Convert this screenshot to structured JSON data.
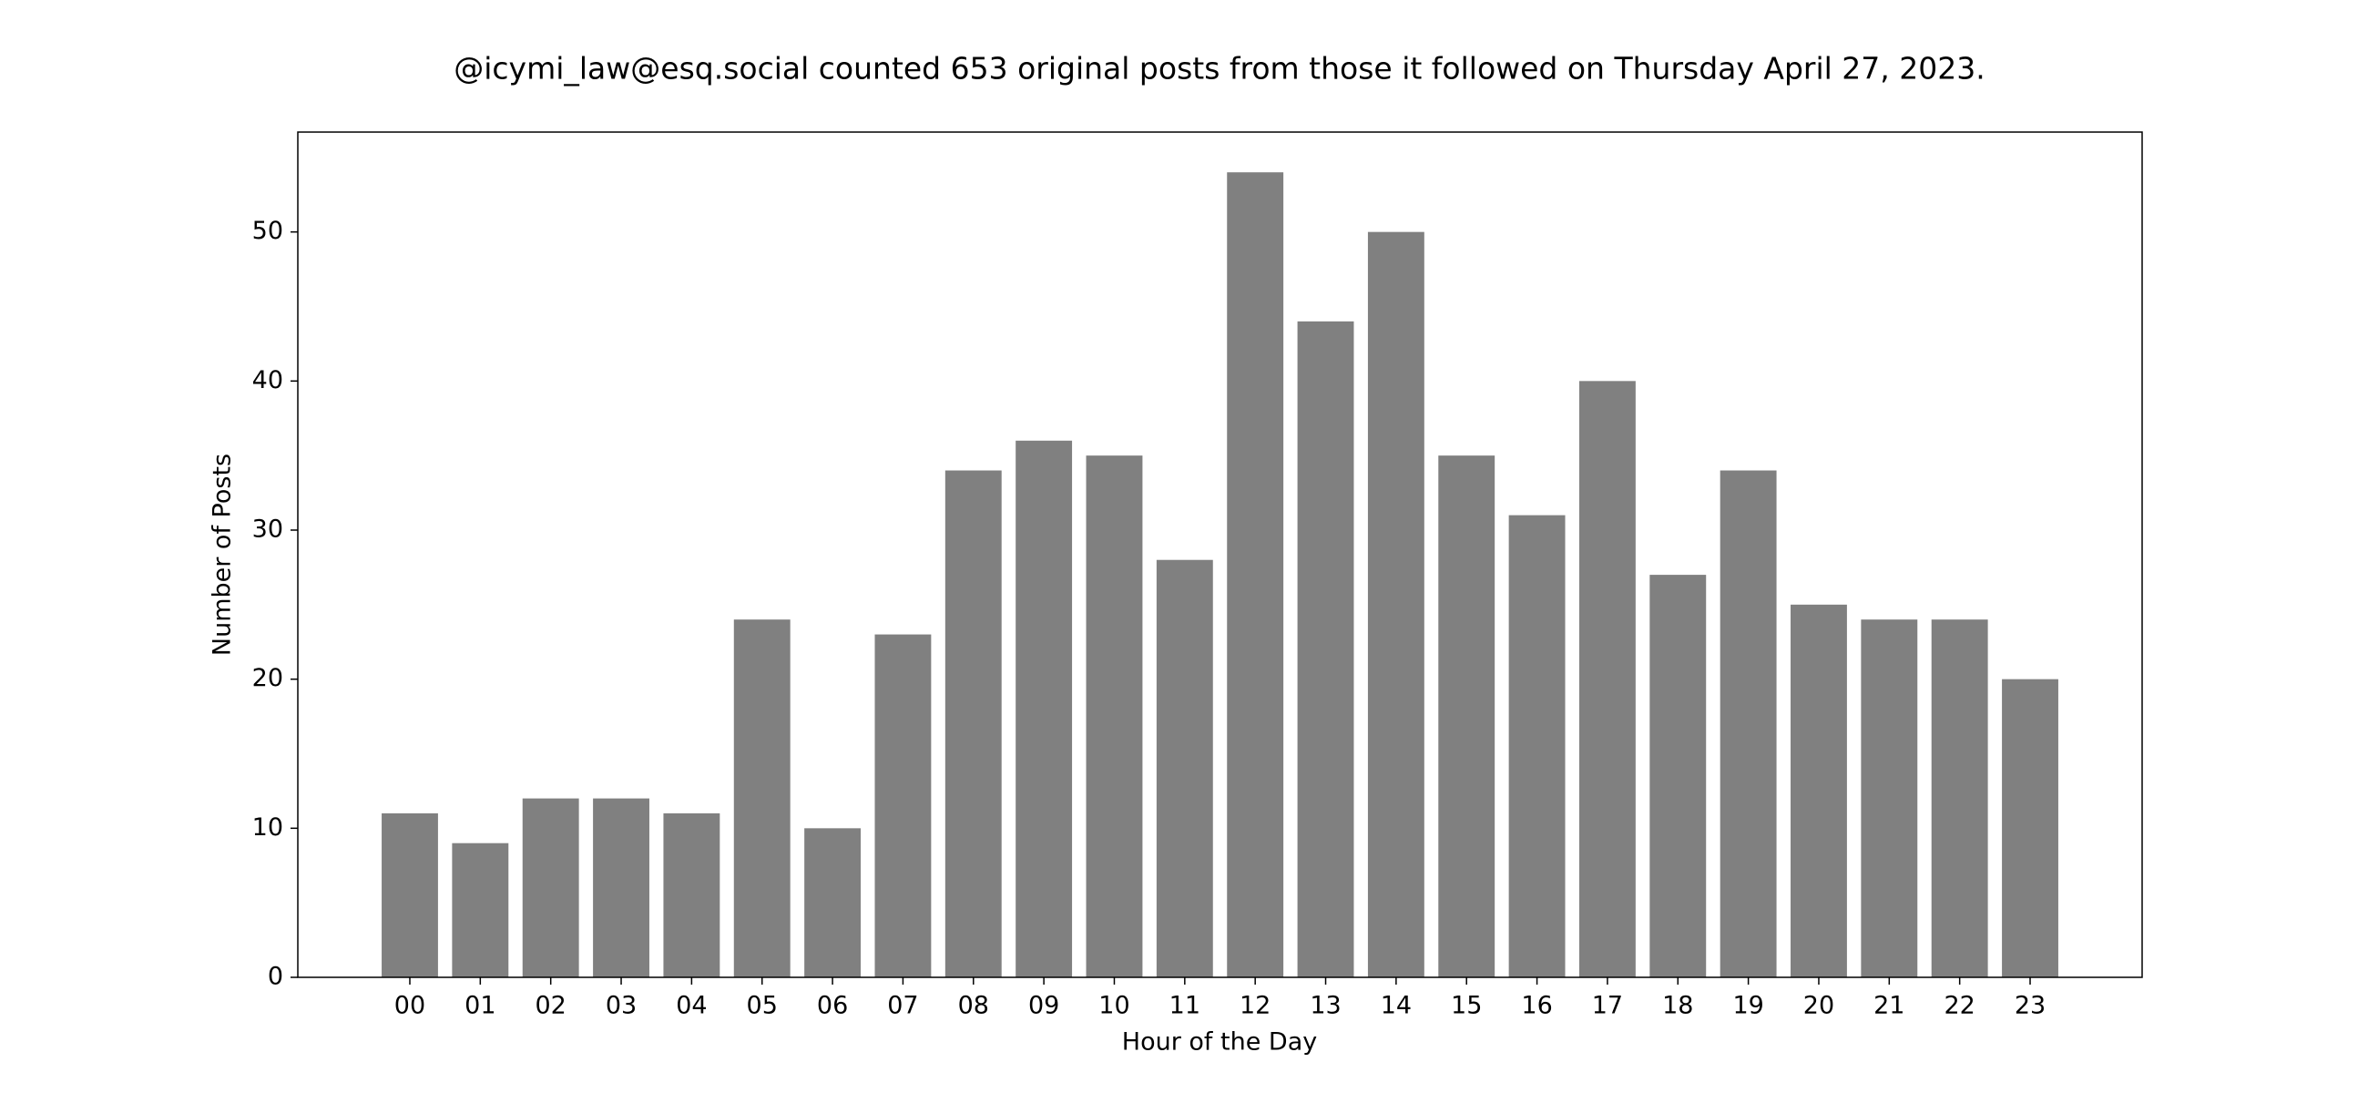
{
  "chart_data": {
    "type": "bar",
    "title": "@icymi_law@esq.social counted 653 original posts from those it followed on Thursday April 27, 2023.",
    "x_label": "Hour of the Day",
    "y_label": "Number of Posts",
    "categories": [
      "00",
      "01",
      "02",
      "03",
      "04",
      "05",
      "06",
      "07",
      "08",
      "09",
      "10",
      "11",
      "12",
      "13",
      "14",
      "15",
      "16",
      "17",
      "18",
      "19",
      "20",
      "21",
      "22",
      "23"
    ],
    "values": [
      11,
      9,
      12,
      12,
      11,
      24,
      10,
      23,
      34,
      36,
      35,
      28,
      54,
      44,
      50,
      35,
      31,
      40,
      27,
      34,
      25,
      24,
      24,
      20
    ],
    "color": "#808080",
    "ylim": [
      0,
      56.7
    ],
    "yticks": [
      0,
      10,
      20,
      30,
      40,
      50
    ],
    "grid": false
  }
}
